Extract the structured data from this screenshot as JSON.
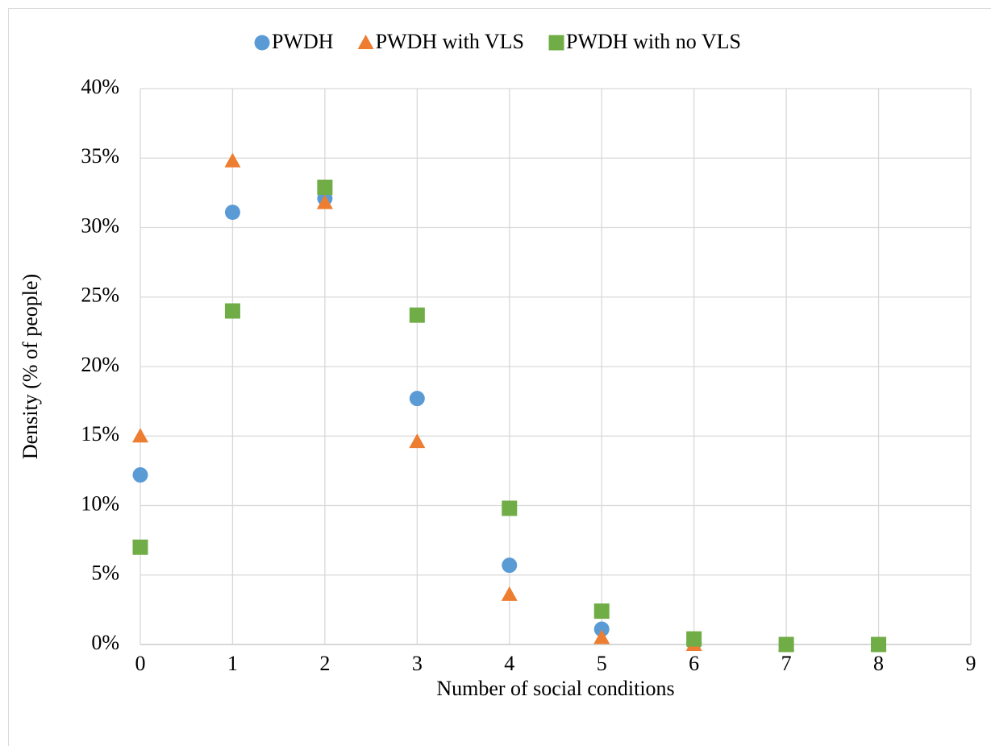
{
  "chart_data": {
    "type": "scatter",
    "x_label": "Number of social conditions",
    "y_label": "Density (% of  people)",
    "x": [
      0,
      1,
      2,
      3,
      4,
      5,
      6,
      7,
      8
    ],
    "series": [
      {
        "name": "PWDH",
        "color": "#5b9bd5",
        "marker": "circle",
        "values": [
          12.2,
          31.1,
          32.1,
          17.7,
          5.7,
          1.1,
          0.1,
          0,
          0
        ]
      },
      {
        "name": "PWDH with VLS",
        "color": "#ed7d31",
        "marker": "triangle",
        "values": [
          15.0,
          34.8,
          31.8,
          14.6,
          3.6,
          0.5,
          0,
          0,
          0
        ]
      },
      {
        "name": "PWDH with no VLS",
        "color": "#70ad47",
        "marker": "square",
        "values": [
          7.0,
          24.0,
          32.9,
          23.7,
          9.8,
          2.4,
          0.4,
          0,
          0
        ]
      }
    ],
    "xlim": [
      0,
      9
    ],
    "xticks": [
      0,
      1,
      2,
      3,
      4,
      5,
      6,
      7,
      8,
      9
    ],
    "ylim": [
      0,
      40
    ],
    "yticks": [
      {
        "value": 0,
        "label": "0%"
      },
      {
        "value": 5,
        "label": "5%"
      },
      {
        "value": 10,
        "label": "10%"
      },
      {
        "value": 15,
        "label": "15%"
      },
      {
        "value": 20,
        "label": "20%"
      },
      {
        "value": 25,
        "label": "25%"
      },
      {
        "value": 30,
        "label": "30%"
      },
      {
        "value": 35,
        "label": "35%"
      },
      {
        "value": 40,
        "label": "40%"
      }
    ],
    "grid": true,
    "legend": "top"
  }
}
